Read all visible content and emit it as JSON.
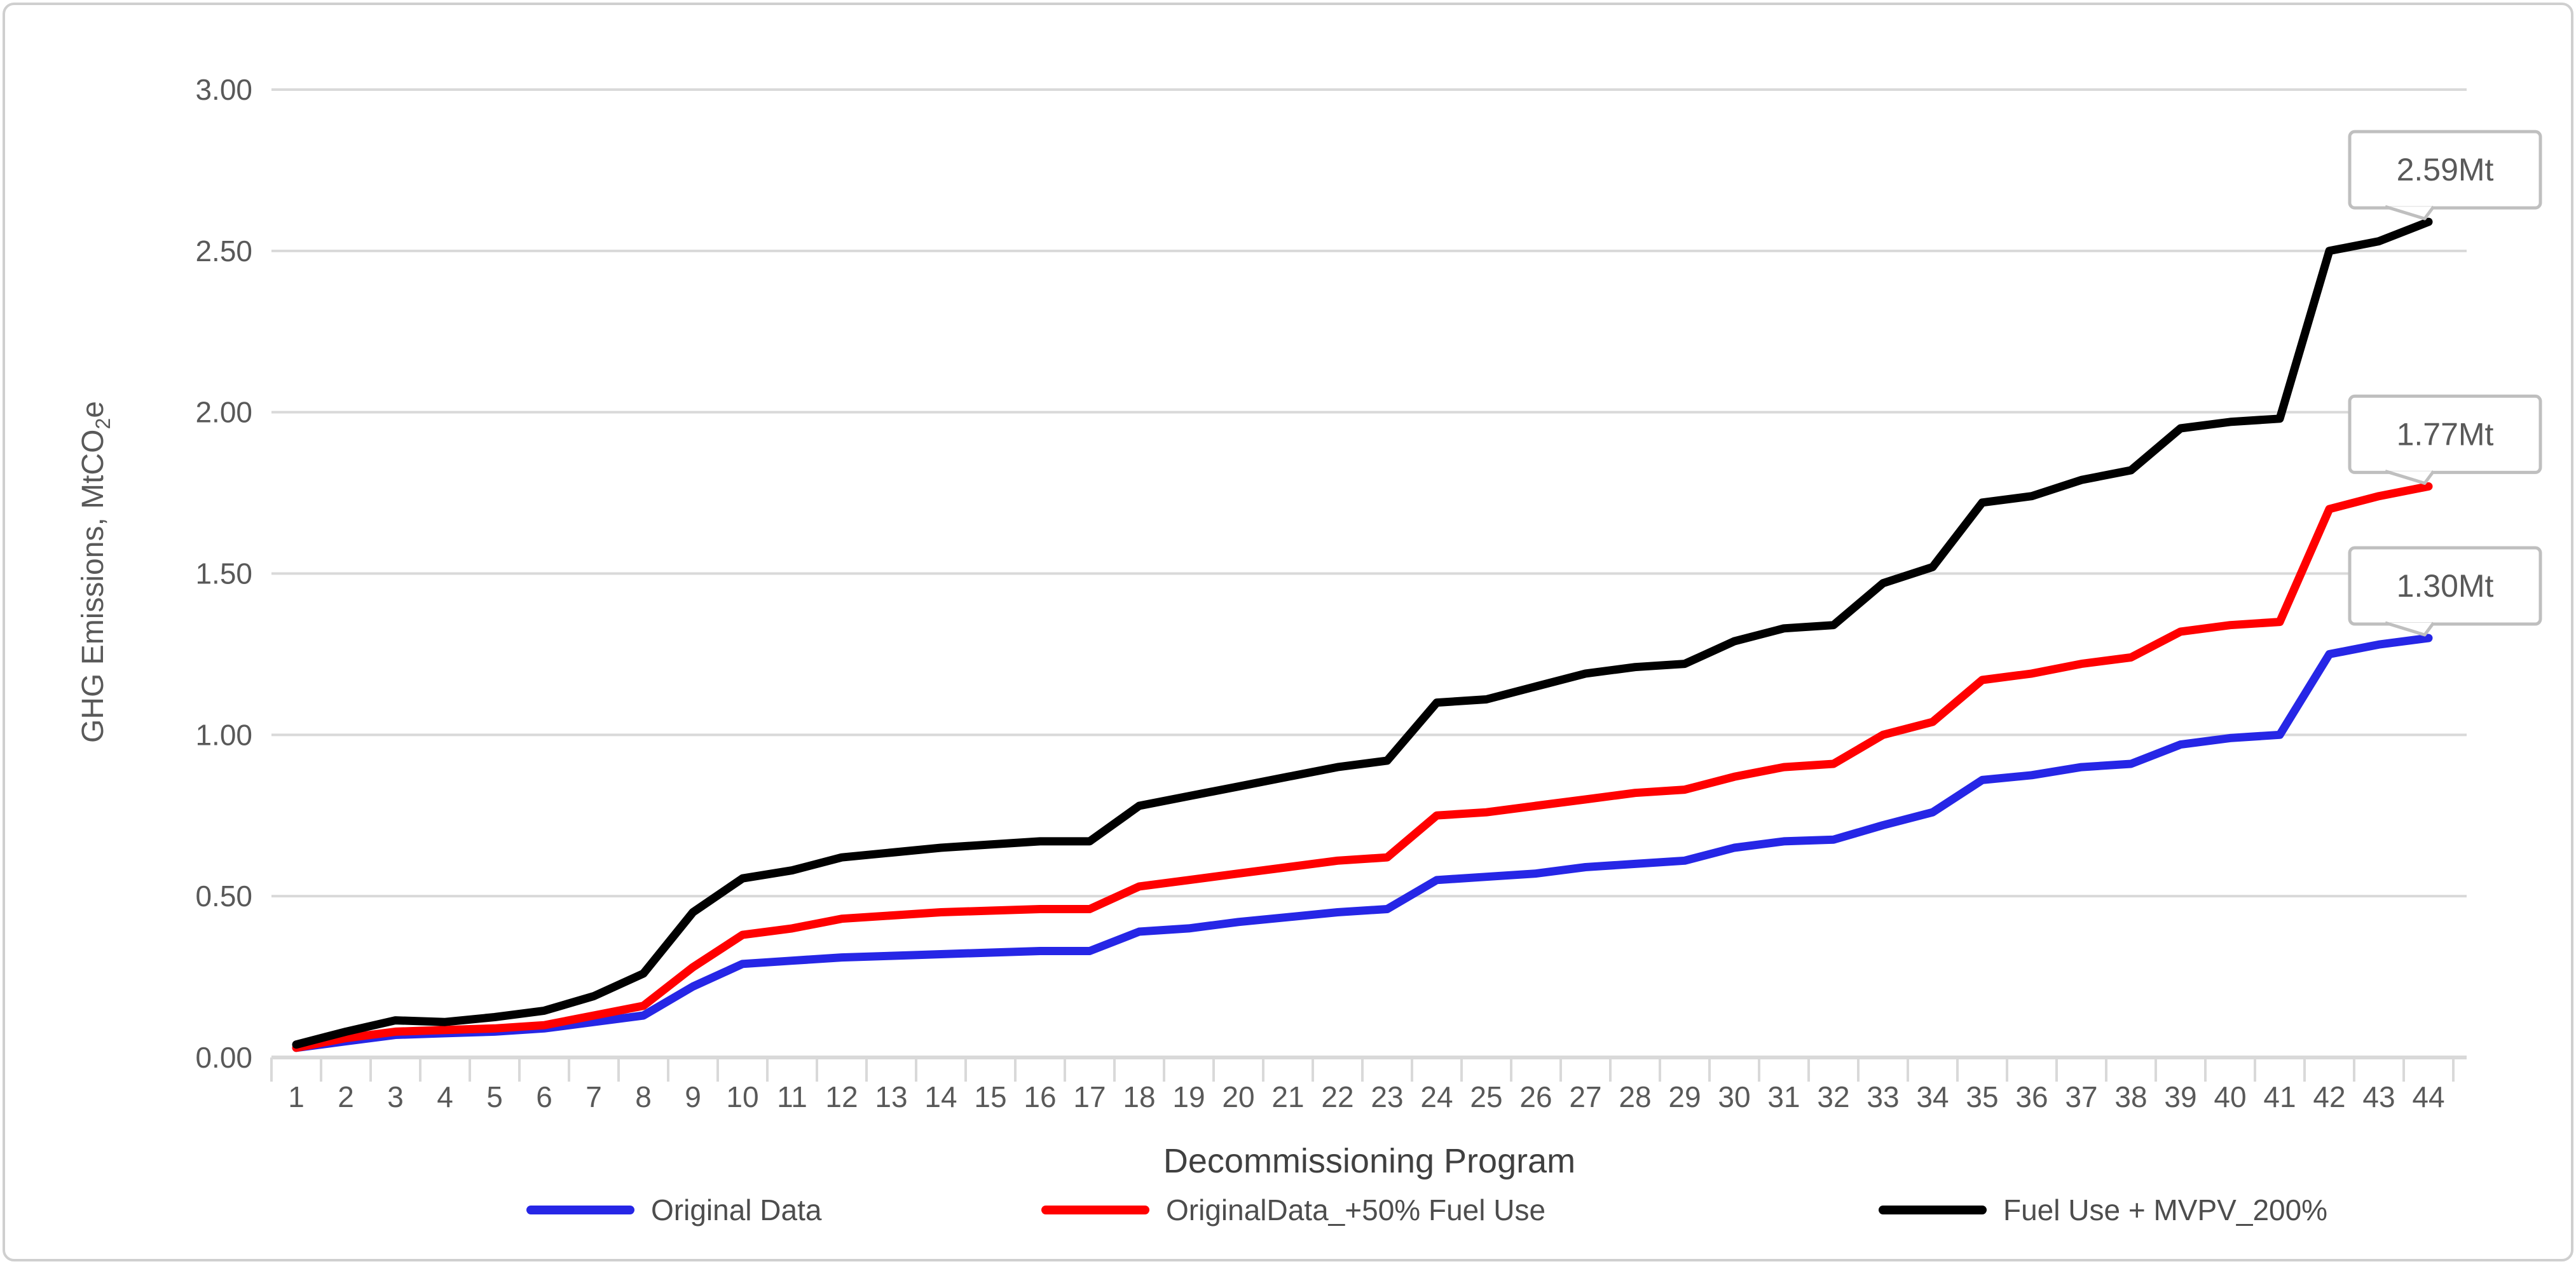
{
  "chart_data": {
    "type": "line",
    "title": "",
    "xlabel": "Decommissioning Program",
    "ylabel": "GHG Emissions, MtCO2e",
    "ylabel_parts": {
      "pre": "GHG Emissions, MtCO",
      "sub": "2",
      "post": "e"
    },
    "x": [
      1,
      2,
      3,
      4,
      5,
      6,
      7,
      8,
      9,
      10,
      11,
      12,
      13,
      14,
      15,
      16,
      17,
      18,
      19,
      20,
      21,
      22,
      23,
      24,
      25,
      26,
      27,
      28,
      29,
      30,
      31,
      32,
      33,
      34,
      35,
      36,
      37,
      38,
      39,
      40,
      41,
      42,
      43,
      44
    ],
    "ylim": [
      0,
      3
    ],
    "ytick_labels": [
      "0.00",
      "0.50",
      "1.00",
      "1.50",
      "2.00",
      "2.50",
      "3.00"
    ],
    "grid": true,
    "legend_position": "bottom",
    "series": [
      {
        "name": "Original Data",
        "color": "#2626E6",
        "values": [
          0.03,
          0.05,
          0.07,
          0.075,
          0.08,
          0.09,
          0.11,
          0.13,
          0.22,
          0.29,
          0.3,
          0.31,
          0.315,
          0.32,
          0.325,
          0.33,
          0.33,
          0.39,
          0.4,
          0.42,
          0.435,
          0.45,
          0.46,
          0.55,
          0.56,
          0.57,
          0.59,
          0.6,
          0.61,
          0.65,
          0.67,
          0.675,
          0.72,
          0.76,
          0.86,
          0.875,
          0.9,
          0.91,
          0.97,
          0.99,
          1.0,
          1.25,
          1.28,
          1.3
        ]
      },
      {
        "name": "OriginalData_+50% Fuel Use",
        "color": "#FF0000",
        "values": [
          0.03,
          0.06,
          0.08,
          0.085,
          0.09,
          0.1,
          0.13,
          0.16,
          0.28,
          0.38,
          0.4,
          0.43,
          0.44,
          0.45,
          0.455,
          0.46,
          0.46,
          0.53,
          0.55,
          0.57,
          0.59,
          0.61,
          0.62,
          0.75,
          0.76,
          0.78,
          0.8,
          0.82,
          0.83,
          0.87,
          0.9,
          0.91,
          1.0,
          1.04,
          1.17,
          1.19,
          1.22,
          1.24,
          1.32,
          1.34,
          1.35,
          1.7,
          1.74,
          1.77
        ]
      },
      {
        "name": "Fuel Use + MVPV_200%",
        "color": "#000000",
        "values": [
          0.04,
          0.08,
          0.115,
          0.11,
          0.125,
          0.145,
          0.19,
          0.26,
          0.45,
          0.555,
          0.58,
          0.62,
          0.635,
          0.65,
          0.66,
          0.67,
          0.67,
          0.78,
          0.81,
          0.84,
          0.87,
          0.9,
          0.92,
          1.1,
          1.11,
          1.15,
          1.19,
          1.21,
          1.22,
          1.29,
          1.33,
          1.34,
          1.47,
          1.52,
          1.72,
          1.74,
          1.79,
          1.82,
          1.95,
          1.97,
          1.98,
          2.5,
          2.53,
          2.59
        ]
      }
    ],
    "end_labels": [
      {
        "series_index": 2,
        "text": "2.59Mt"
      },
      {
        "series_index": 1,
        "text": "1.77Mt"
      },
      {
        "series_index": 0,
        "text": "1.30Mt"
      }
    ],
    "style": {
      "grid_color": "#D9D9D9",
      "axis_color": "#D9D9D9",
      "tick_text_color": "#595959",
      "title_color": "#404040",
      "callout_border_color": "#BFBFBF",
      "callout_fill": "#FFFFFF",
      "frame_border_color": "#CFCFCF"
    }
  }
}
